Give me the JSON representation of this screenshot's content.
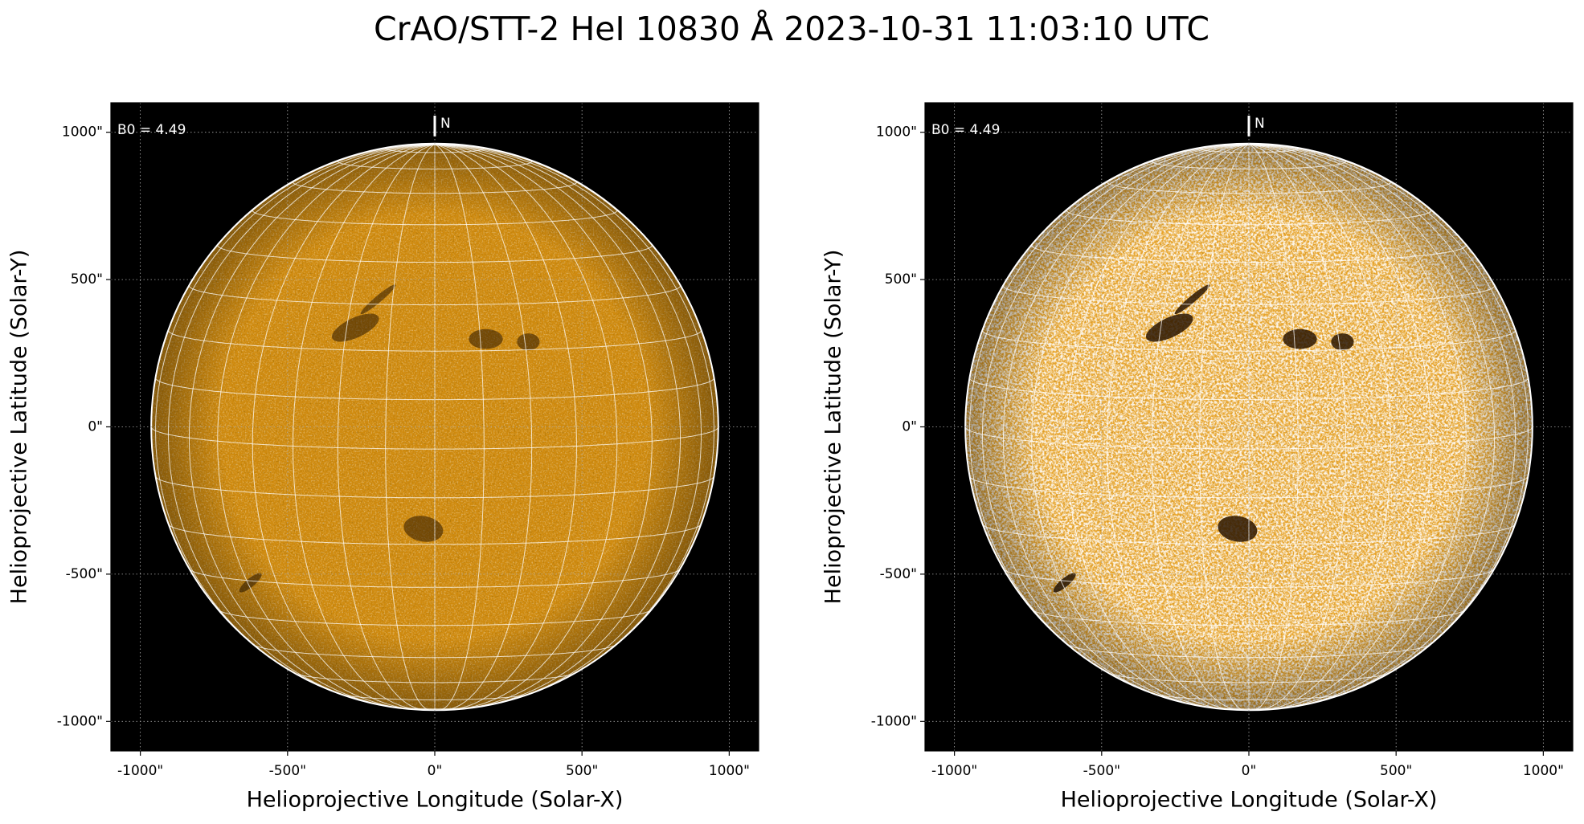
{
  "title": "CrAO/STT-2 HeI 10830 Å 2023-10-31 11:03:10 UTC",
  "chart_data": [
    {
      "type": "image",
      "xlabel": "Helioprojective Longitude (Solar-X)",
      "ylabel": "Helioprojective Latitude (Solar-Y)",
      "xlim": [
        -1100,
        1100
      ],
      "ylim": [
        -1100,
        1100
      ],
      "xticks": [
        {
          "value": -1000,
          "label": "-1000\""
        },
        {
          "value": -500,
          "label": "-500\""
        },
        {
          "value": 0,
          "label": "0\""
        },
        {
          "value": 500,
          "label": "500\""
        },
        {
          "value": 1000,
          "label": "1000\""
        }
      ],
      "yticks": [
        {
          "value": -1000,
          "label": "-1000\""
        },
        {
          "value": -500,
          "label": "-500\""
        },
        {
          "value": 0,
          "label": "0\""
        },
        {
          "value": 500,
          "label": "500\""
        },
        {
          "value": 1000,
          "label": "1000\""
        }
      ],
      "grid": true,
      "b0": {
        "value": 4.49,
        "label": "B0 = 4.49"
      },
      "north_label": "N",
      "disk_radius": 963,
      "lonlat_spacing": 10,
      "color": "#cf8a0e"
    },
    {
      "type": "image",
      "xlabel": "Helioprojective Longitude (Solar-X)",
      "ylabel": "Helioprojective Latitude (Solar-Y)",
      "xlim": [
        -1100,
        1100
      ],
      "ylim": [
        -1100,
        1100
      ],
      "xticks": [
        {
          "value": -1000,
          "label": "-1000\""
        },
        {
          "value": -500,
          "label": "-500\""
        },
        {
          "value": 0,
          "label": "0\""
        },
        {
          "value": 500,
          "label": "500\""
        },
        {
          "value": 1000,
          "label": "1000\""
        }
      ],
      "yticks": [
        {
          "value": -1000,
          "label": "-1000\""
        },
        {
          "value": -500,
          "label": "-500\""
        },
        {
          "value": 0,
          "label": "0\""
        },
        {
          "value": 500,
          "label": "500\""
        },
        {
          "value": 1000,
          "label": "1000\""
        }
      ],
      "grid": true,
      "b0": {
        "value": 4.49,
        "label": "B0 = 4.49"
      },
      "north_label": "N",
      "disk_radius": 963,
      "lonlat_spacing": 10,
      "color": "#e8a42a"
    }
  ]
}
